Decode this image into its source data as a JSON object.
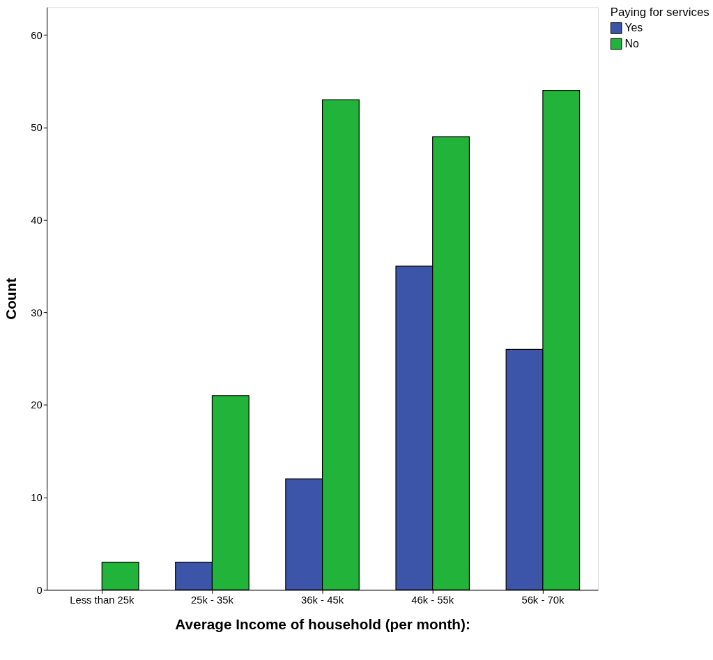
{
  "chart_data": {
    "type": "bar",
    "xlabel": "Average Income of household (per month):",
    "ylabel": "Count",
    "legend_title": "Paying for services",
    "categories": [
      "Less than 25k",
      "25k - 35k",
      "36k - 45k",
      "46k - 55k",
      "56k - 70k"
    ],
    "series": [
      {
        "name": "Yes",
        "color": "#3c55a8",
        "values": [
          null,
          3,
          12,
          35,
          26
        ]
      },
      {
        "name": "No",
        "color": "#22b33a",
        "values": [
          3,
          21,
          53,
          49,
          54
        ]
      }
    ],
    "ylim": [
      0,
      63
    ],
    "yticks": [
      0,
      10,
      20,
      30,
      40,
      50,
      60
    ],
    "grid": false,
    "legend": "top right"
  }
}
